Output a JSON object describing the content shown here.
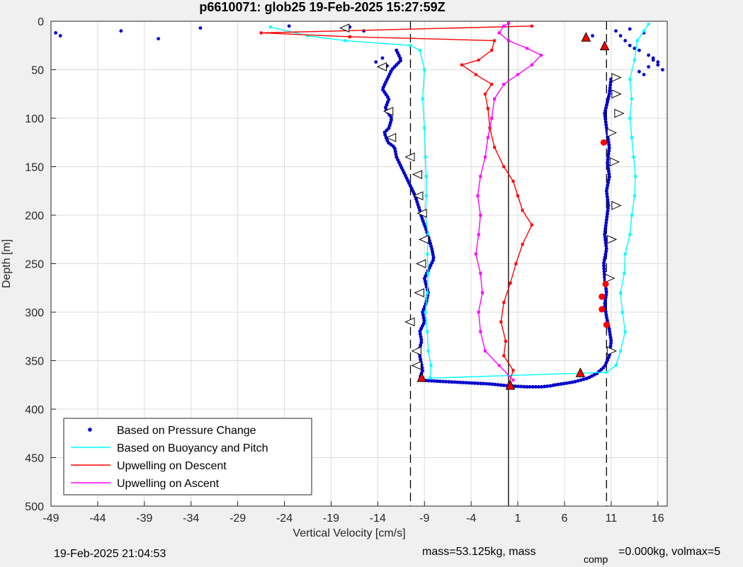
{
  "chart_data": {
    "type": "scatter",
    "title": "p6610071: glob25 19-Feb-2025 15:27:59Z",
    "xlabel": "Vertical Velocity [cm/s]",
    "ylabel": "Depth [m]",
    "xlim": [
      -49,
      17
    ],
    "ylim": [
      0,
      500
    ],
    "y_reversed": true,
    "grid": true,
    "xticks": [
      -49,
      -44,
      -39,
      -34,
      -29,
      -24,
      -19,
      -14,
      -9,
      -4,
      1,
      6,
      11,
      16
    ],
    "yticks": [
      0,
      50,
      100,
      150,
      200,
      250,
      300,
      350,
      400,
      450,
      500
    ],
    "xtick_labels": [
      "-49",
      "-44",
      "-39",
      "-34",
      "-29",
      "-24",
      "-19",
      "-14",
      "-9",
      "-4",
      "1",
      "6",
      "11",
      "16"
    ],
    "ytick_labels": [
      "0",
      "50",
      "100",
      "150",
      "200",
      "250",
      "300",
      "350",
      "400",
      "450",
      "500"
    ],
    "reference_lines": [
      {
        "x": -10.5,
        "style": "dashed",
        "color": "#000000"
      },
      {
        "x": 10.5,
        "style": "dashed",
        "color": "#000000"
      },
      {
        "x": 0,
        "style": "solid",
        "color": "#000000"
      }
    ],
    "legend_position": "bottom-left",
    "series": [
      {
        "name": "Based on Pressure Change",
        "color": "#0000cc",
        "marker": "dot",
        "segments": [
          {
            "x": [
              -12.0,
              -11.5,
              -12.5,
              -13.0,
              -13.5,
              -12.8,
              -13.2,
              -12.5,
              -12.8,
              -13.3,
              -12.9,
              -12.2,
              -12.0,
              -11.5,
              -11.0,
              -10.5,
              -10.0,
              -9.5,
              -9.2,
              -8.8,
              -8.5,
              -8.2,
              -8.0,
              -8.5,
              -9.0,
              -8.6,
              -8.8,
              -9.2,
              -9.0,
              -9.5,
              -9.3,
              -9.6,
              -9.4,
              -9.2,
              -9.5
            ],
            "y": [
              30,
              40,
              50,
              60,
              70,
              80,
              90,
              100,
              110,
              115,
              125,
              130,
              140,
              150,
              160,
              170,
              180,
              195,
              205,
              215,
              225,
              235,
              245,
              255,
              265,
              280,
              290,
              300,
              310,
              320,
              330,
              340,
              350,
              360,
              368
            ]
          },
          {
            "x": [
              -9.5,
              -8.0,
              -6.0,
              -4.0,
              -2.0,
              0.0,
              2.0,
              3.5,
              4.5,
              5.0
            ],
            "y": [
              370,
              371,
              372,
              373,
              374,
              376,
              377,
              377,
              376,
              375
            ]
          },
          {
            "x": [
              5.0,
              7.0,
              8.5,
              9.5,
              10.3,
              10.8,
              11.0,
              10.8,
              10.5,
              10.3,
              10.5,
              10.3,
              10.2,
              10.5,
              10.3,
              10.5,
              10.7,
              10.5,
              10.8,
              10.6,
              10.8,
              10.5,
              10.3,
              10.8,
              11.0
            ],
            "y": [
              375,
              372,
              368,
              363,
              356,
              345,
              330,
              318,
              305,
              292,
              280,
              265,
              250,
              235,
              220,
              205,
              190,
              175,
              160,
              145,
              130,
              110,
              95,
              75,
              58
            ]
          }
        ],
        "scatter": {
          "x": [
            -48.5,
            -48.0,
            -41.5,
            -37.5,
            -33.0,
            -23.5,
            -17.0,
            -15.5,
            -13.5,
            -14.2,
            -13.0,
            12.5,
            13.0,
            14.0,
            15.0,
            15.5,
            16.0,
            16.5,
            14.5,
            13.5,
            12.0,
            11.5,
            9.0,
            8.5,
            13.0,
            14.5,
            15.5,
            16.0,
            15.0,
            14.0
          ],
          "y": [
            12,
            15,
            10,
            18,
            7,
            5,
            6,
            10,
            38,
            42,
            46,
            20,
            25,
            30,
            35,
            40,
            45,
            50,
            55,
            28,
            15,
            10,
            15,
            18,
            8,
            12,
            38,
            42,
            47,
            52
          ]
        }
      },
      {
        "name": "Based on Buoyancy and Pitch",
        "color": "#00ffff",
        "marker": "line",
        "segments": [
          {
            "x": [
              -25.5,
              -21.5,
              -17.5,
              -10.5,
              -9.5,
              -9.0,
              -9.2,
              -9.0,
              -8.9,
              -8.8,
              -8.8,
              -8.9,
              -8.6,
              -8.7,
              -8.6,
              -8.7,
              -8.9,
              -8.7,
              -8.6,
              -8.3,
              -8.4
            ],
            "y": [
              6,
              15,
              20,
              25,
              30,
              50,
              80,
              110,
              140,
              160,
              180,
              200,
              220,
              240,
              260,
              280,
              300,
              320,
              340,
              355,
              368
            ]
          },
          {
            "x": [
              -8.4,
              10.5,
              11.5,
              12.0,
              12.5,
              12.2,
              12.0,
              12.4,
              12.5,
              13.0,
              13.2,
              13.5,
              13.6,
              13.4,
              13.2,
              13.0,
              13.2,
              13.0,
              13.5,
              13.8,
              14.5,
              15.0
            ],
            "y": [
              368,
              362,
              355,
              340,
              320,
              300,
              280,
              260,
              240,
              220,
              200,
              180,
              160,
              140,
              120,
              100,
              80,
              60,
              40,
              20,
              10,
              3
            ]
          }
        ]
      },
      {
        "name": "Upwelling on Descent",
        "color": "#ff0000",
        "marker": "line",
        "segments": [
          {
            "x": [
              2.5,
              -26.5,
              -17.0,
              -1.5,
              -1.8,
              -3.2,
              -5.0,
              -3.5,
              -1.8,
              -2.5,
              -2.2,
              -2.0,
              -1.5,
              -0.5,
              0.5,
              1.0,
              1.5,
              2.5,
              1.5,
              0.8,
              0.2,
              -0.5,
              -0.8,
              -0.3,
              -0.5,
              0.5,
              0.0
            ],
            "y": [
              5,
              12,
              16,
              20,
              30,
              40,
              45,
              55,
              65,
              75,
              90,
              110,
              130,
              150,
              165,
              180,
              195,
              210,
              230,
              250,
              270,
              290,
              310,
              330,
              345,
              360,
              375
            ]
          }
        ]
      },
      {
        "name": "Upwelling on Ascent",
        "color": "#ff00ff",
        "marker": "line",
        "segments": [
          {
            "x": [
              0.5,
              -1.0,
              -2.5,
              -3.0,
              -3.2,
              -2.8,
              -3.0,
              -3.5,
              -3.2,
              -3.0,
              -3.3,
              -3.0,
              -2.5,
              -2.2,
              -1.8,
              -1.5,
              -0.5,
              1.0,
              2.5,
              3.5,
              2.0,
              0.0,
              -1.0,
              -0.5,
              0.0
            ],
            "y": [
              370,
              355,
              340,
              320,
              300,
              280,
              260,
              240,
              220,
              200,
              180,
              160,
              140,
              120,
              100,
              80,
              65,
              55,
              45,
              35,
              28,
              20,
              12,
              5,
              2
            ]
          }
        ]
      }
    ],
    "marker_points": [
      {
        "shape": "triangle-left",
        "fill": "#ffffff",
        "x": -17.5,
        "y": 7
      },
      {
        "shape": "triangle-left",
        "fill": "#ffffff",
        "x": -13.5,
        "y": 47
      },
      {
        "shape": "triangle-left",
        "fill": "#ffffff",
        "x": -12.8,
        "y": 93
      },
      {
        "shape": "triangle-left",
        "fill": "#ffffff",
        "x": -12.5,
        "y": 120
      },
      {
        "shape": "triangle-left",
        "fill": "#ffffff",
        "x": -10.5,
        "y": 140
      },
      {
        "shape": "triangle-left",
        "fill": "#ffffff",
        "x": -9.7,
        "y": 158
      },
      {
        "shape": "triangle-left",
        "fill": "#ffffff",
        "x": -9.6,
        "y": 180
      },
      {
        "shape": "triangle-left",
        "fill": "#ffffff",
        "x": -9.2,
        "y": 198
      },
      {
        "shape": "triangle-left",
        "fill": "#ffffff",
        "x": -9.0,
        "y": 225
      },
      {
        "shape": "triangle-left",
        "fill": "#ffffff",
        "x": -9.3,
        "y": 250
      },
      {
        "shape": "triangle-left",
        "fill": "#ffffff",
        "x": -9.5,
        "y": 280
      },
      {
        "shape": "triangle-left",
        "fill": "#ffffff",
        "x": -10.5,
        "y": 310
      },
      {
        "shape": "triangle-left",
        "fill": "#ffffff",
        "x": -9.8,
        "y": 340
      },
      {
        "shape": "triangle-left",
        "fill": "#ffffff",
        "x": -9.8,
        "y": 355
      },
      {
        "shape": "triangle-right",
        "fill": "#ffffff",
        "x": 11.5,
        "y": 58
      },
      {
        "shape": "triangle-right",
        "fill": "#ffffff",
        "x": 11.5,
        "y": 75
      },
      {
        "shape": "triangle-right",
        "fill": "#ffffff",
        "x": 11.8,
        "y": 95
      },
      {
        "shape": "triangle-right",
        "fill": "#ffffff",
        "x": 11.0,
        "y": 115
      },
      {
        "shape": "triangle-right",
        "fill": "#ffffff",
        "x": 11.3,
        "y": 145
      },
      {
        "shape": "triangle-right",
        "fill": "#ffffff",
        "x": 11.5,
        "y": 190
      },
      {
        "shape": "triangle-right",
        "fill": "#ffffff",
        "x": 11.0,
        "y": 225
      },
      {
        "shape": "triangle-right",
        "fill": "#ffffff",
        "x": 10.8,
        "y": 265
      },
      {
        "shape": "triangle-right",
        "fill": "#ffffff",
        "x": 11.0,
        "y": 340
      },
      {
        "shape": "triangle-up",
        "fill": "#ff0000",
        "x": 8.3,
        "y": 17
      },
      {
        "shape": "triangle-up",
        "fill": "#ff0000",
        "x": 10.3,
        "y": 26
      },
      {
        "shape": "triangle-up",
        "fill": "#ff0000",
        "x": 7.7,
        "y": 363
      },
      {
        "shape": "triangle-up",
        "fill": "#ff0000",
        "x": -9.3,
        "y": 368
      },
      {
        "shape": "triangle-up",
        "fill": "#ff0000",
        "x": 0.2,
        "y": 376
      },
      {
        "shape": "circle",
        "fill": "#ff0000",
        "x": 10.2,
        "y": 125
      },
      {
        "shape": "circle",
        "fill": "#ff0000",
        "x": 10.4,
        "y": 271
      },
      {
        "shape": "circle",
        "fill": "#ff0000",
        "x": 10.0,
        "y": 284
      },
      {
        "shape": "circle",
        "fill": "#ff0000",
        "x": 10.0,
        "y": 297
      },
      {
        "shape": "circle",
        "fill": "#ff0000",
        "x": 10.5,
        "y": 313
      }
    ],
    "footer": {
      "timestamp": "19-Feb-2025 21:04:53",
      "mass_text": "mass=53.125kg, mass",
      "subscript": "comp",
      "rest_text": "=0.000kg, volmax=5"
    }
  }
}
